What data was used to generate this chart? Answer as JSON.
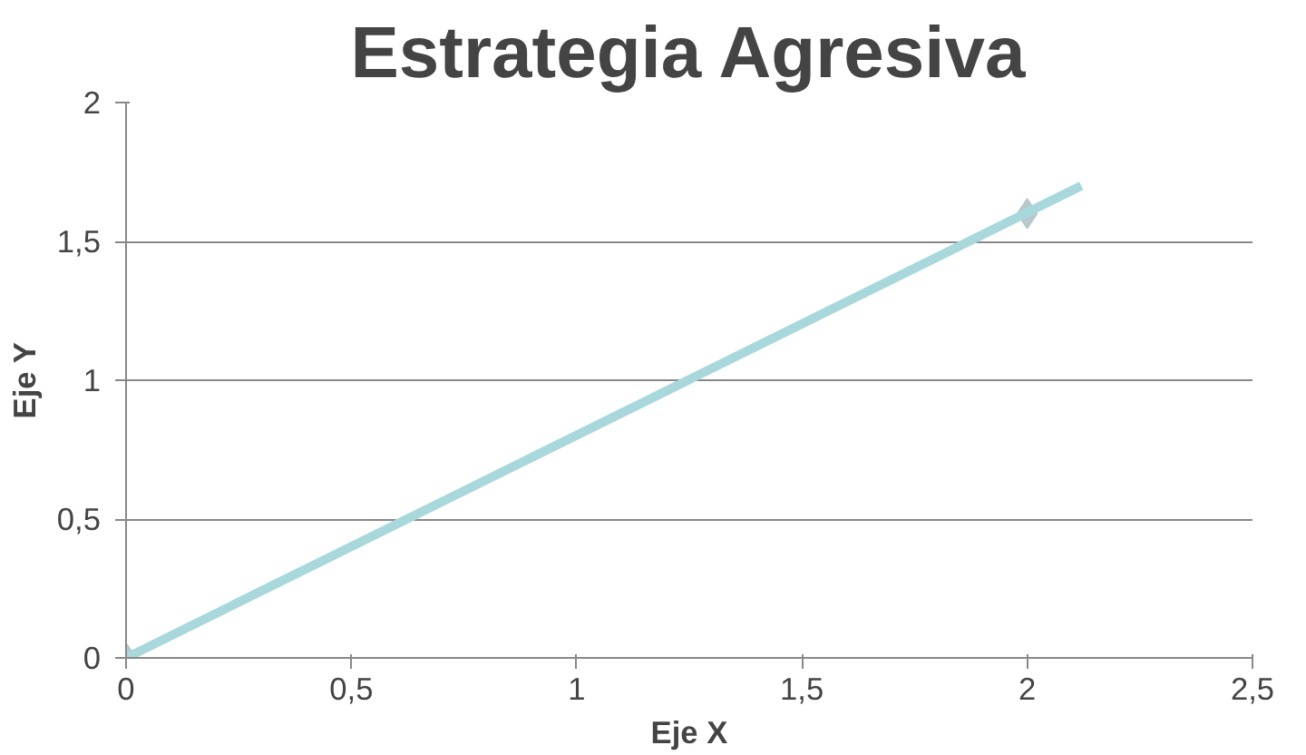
{
  "chart_data": {
    "type": "scatter",
    "title": "Estrategia Agresiva",
    "xlabel": "Eje X",
    "ylabel": "Eje Y",
    "xlim": [
      0,
      2.5
    ],
    "ylim": [
      0,
      2
    ],
    "xticks": [
      0,
      {
        "value": 0.5,
        "label": "0,5"
      },
      1,
      {
        "value": 1.5,
        "label": "1,5"
      },
      2,
      {
        "value": 2.5,
        "label": "2,5"
      }
    ],
    "yticks": [
      0,
      {
        "value": 0.5,
        "label": "0,5"
      },
      1,
      {
        "value": 1.5,
        "label": "1,5"
      },
      2
    ],
    "grid": "y",
    "marker": "diamond",
    "series": [
      {
        "color": "#b8c8cc",
        "x": [
          0,
          2
        ],
        "values": [
          0,
          1.6
        ]
      },
      {
        "type": "line",
        "color": "#a8d8dc",
        "x": [
          0,
          2.12
        ],
        "values": [
          0,
          1.7
        ],
        "marker": "none"
      }
    ]
  }
}
